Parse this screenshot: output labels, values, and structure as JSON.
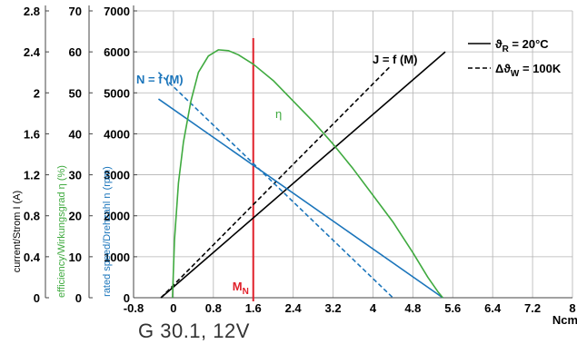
{
  "caption": "G 30.1, 12V",
  "colors": {
    "black": "#000000",
    "blue": "#1b75bb",
    "green": "#3faa3f",
    "red": "#e0202a",
    "grid": "#b3b3b3",
    "axis": "#444444"
  },
  "chart_data": {
    "type": "line",
    "x": {
      "label": "Ncm",
      "ticks": [
        -0.8,
        0,
        0.8,
        1.6,
        2.4,
        3.2,
        4,
        4.8,
        5.6,
        6.4,
        7.2,
        8
      ],
      "range": [
        -0.8,
        8
      ]
    },
    "axes": {
      "speed": {
        "label": "rated speed/Drehzahl n (rpm)",
        "ticks": [
          0,
          1000,
          2000,
          3000,
          4000,
          5000,
          6000,
          7000
        ],
        "range": [
          0,
          7000
        ],
        "color": "#1b75bb"
      },
      "efficiency": {
        "label": "efficiency/Wirkungsgrad η (%)",
        "ticks": [
          0,
          10,
          20,
          30,
          40,
          50,
          60,
          70
        ],
        "range": [
          0,
          70
        ],
        "color": "#3faa3f"
      },
      "current": {
        "label": "current/Strom I (A)",
        "ticks": [
          0,
          0.4,
          0.8,
          1.2,
          1.6,
          2,
          2.4,
          2.8
        ],
        "tick_labels": [
          "0",
          "0.4",
          "0.8",
          "1.2",
          "1.6",
          "2",
          "2.4",
          "2.8"
        ],
        "range": [
          0,
          2.8
        ],
        "color": "#000000"
      }
    },
    "grid": true,
    "series": [
      {
        "name": "J = f (M)",
        "axis": "current",
        "style": "solid",
        "color": "#000000",
        "x": [
          -0.25,
          5.45
        ],
        "y": [
          0,
          2.4
        ]
      },
      {
        "name": "J = f (M)",
        "axis": "current",
        "style": "dashed",
        "color": "#000000",
        "x": [
          -0.25,
          4.35
        ],
        "y": [
          0,
          2.26
        ]
      },
      {
        "name": "N = f (M)",
        "axis": "speed",
        "style": "solid",
        "color": "#1b75bb",
        "x": [
          -0.3,
          5.4
        ],
        "y": [
          4850,
          0
        ]
      },
      {
        "name": "N = f (M)",
        "axis": "speed",
        "style": "dashed",
        "color": "#1b75bb",
        "x": [
          -0.3,
          4.4
        ],
        "y": [
          5500,
          0
        ]
      },
      {
        "name": "η",
        "axis": "efficiency",
        "style": "solid",
        "color": "#3faa3f",
        "x": [
          -0.02,
          0.02,
          0.1,
          0.2,
          0.35,
          0.5,
          0.7,
          0.9,
          1.1,
          1.3,
          1.6,
          2.0,
          2.4,
          2.8,
          3.2,
          3.6,
          4.0,
          4.4,
          4.8,
          5.1,
          5.3,
          5.4
        ],
        "y": [
          0,
          14,
          28,
          38,
          48,
          55,
          59,
          60.5,
          60.3,
          59.3,
          57,
          53,
          48,
          43,
          37.5,
          31.5,
          25,
          18.5,
          11,
          5,
          1.5,
          0
        ]
      }
    ],
    "marker": {
      "label": "M",
      "subscript": "N",
      "x": 1.6,
      "color": "#e0202a"
    },
    "legend": {
      "position": "top-right",
      "entries": [
        {
          "style": "solid",
          "symbol": "ϑ",
          "subscript": "R",
          "text": "= 20°C"
        },
        {
          "style": "dashed",
          "symbol": "Δϑ",
          "subscript": "W",
          "text": "= 100K"
        }
      ]
    }
  }
}
